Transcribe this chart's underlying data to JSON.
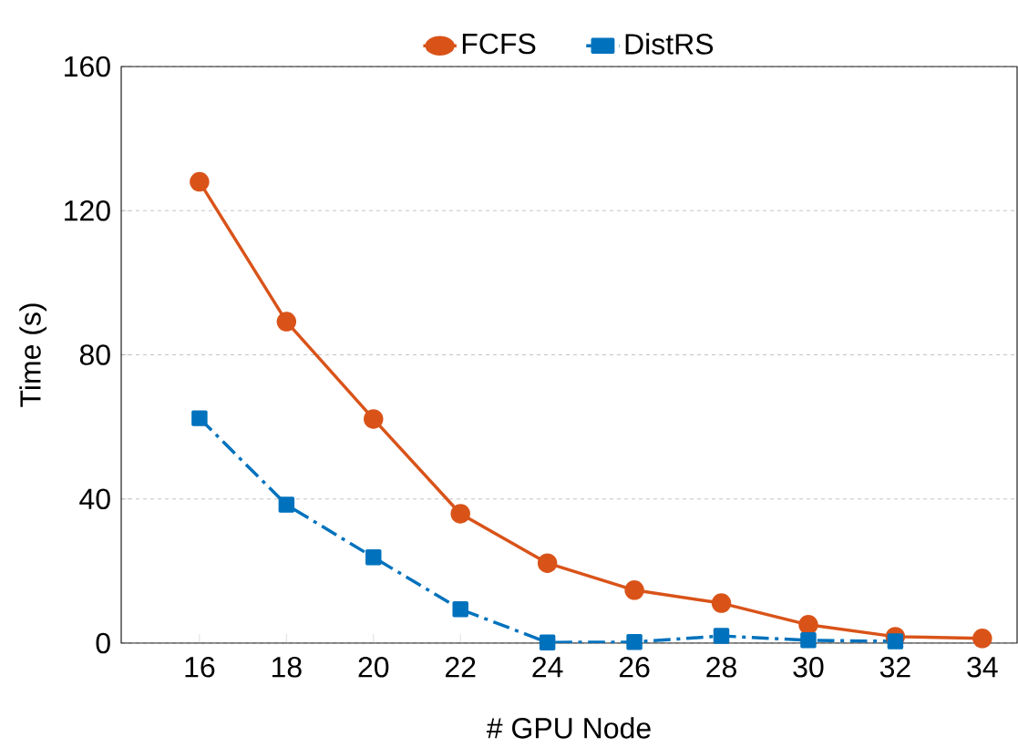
{
  "chart_data": {
    "type": "line",
    "xlabel": "# GPU Node",
    "ylabel": "Time (s)",
    "xlim": [
      14.2,
      34.8
    ],
    "ylim": [
      0,
      160
    ],
    "xticks": [
      16,
      18,
      20,
      22,
      24,
      26,
      28,
      30,
      32,
      34
    ],
    "yticks": [
      0,
      40,
      80,
      120,
      160
    ],
    "grid": "y",
    "legend": "top",
    "series": [
      {
        "name": "FCFS",
        "color": "#d95319",
        "marker": "circle",
        "line_style": "solid",
        "x": [
          16,
          18,
          20,
          22,
          24,
          26,
          28,
          30,
          32,
          34
        ],
        "values": [
          128,
          89.2,
          62.2,
          35.9,
          22.2,
          14.7,
          11.1,
          5.1,
          1.8,
          1.3
        ]
      },
      {
        "name": "DistRS",
        "color": "#0072bd",
        "marker": "square",
        "line_style": "dashdot",
        "x": [
          16,
          18,
          20,
          22,
          24,
          26,
          28,
          30,
          32
        ],
        "values": [
          62.4,
          38.4,
          23.8,
          9.4,
          0.2,
          0.3,
          2.0,
          0.8,
          0.5
        ]
      }
    ]
  }
}
